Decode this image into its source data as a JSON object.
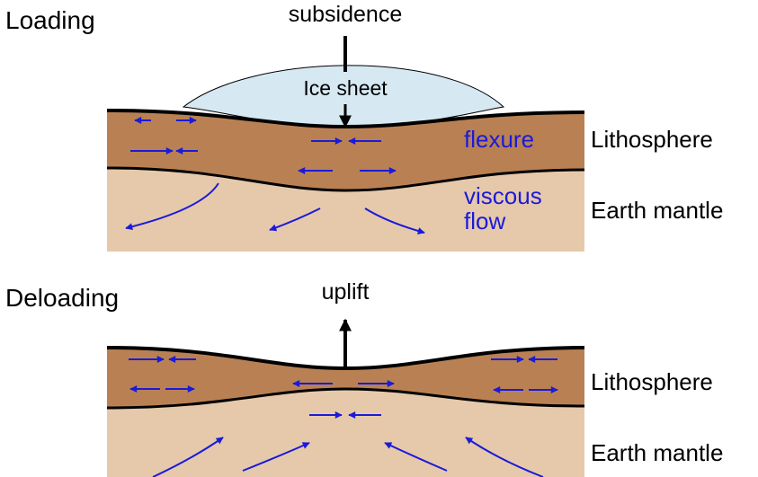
{
  "loading": {
    "title": "Loading",
    "subsidence_label": "subsidence",
    "ice_sheet_label": "Ice sheet",
    "flexure_label": "flexure",
    "viscous_flow_line1": "viscous",
    "viscous_flow_line2": "flow",
    "lithosphere_label": "Lithosphere",
    "mantle_label": "Earth mantle"
  },
  "deloading": {
    "title": "Deloading",
    "uplift_label": "uplift",
    "lithosphere_label": "Lithosphere",
    "mantle_label": "Earth mantle"
  },
  "colors": {
    "lithosphere": "#b98153",
    "mantle": "#e6c9ab",
    "ice": "#d6e8f2",
    "arrows": "#1a1ad9",
    "outline": "#000000"
  }
}
